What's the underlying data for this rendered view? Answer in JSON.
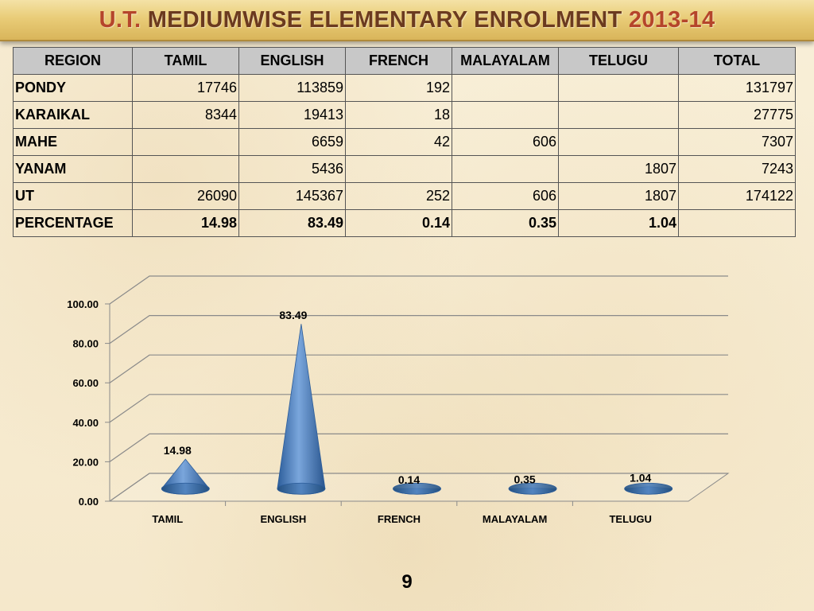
{
  "title": {
    "part1": "U.T.",
    "part2": "MEDIUMWISE ELEMENTARY ENROLMENT",
    "part3": "2013-14"
  },
  "table": {
    "headers": [
      "REGION",
      "TAMIL",
      "ENGLISH",
      "FRENCH",
      "MALAYALAM",
      "TELUGU",
      "TOTAL"
    ],
    "rows": [
      [
        "PONDY",
        "17746",
        "113859",
        "192",
        "",
        "",
        "131797"
      ],
      [
        "KARAIKAL",
        "8344",
        "19413",
        "18",
        "",
        "",
        "27775"
      ],
      [
        "MAHE",
        "",
        "6659",
        "42",
        "606",
        "",
        "7307"
      ],
      [
        "YANAM",
        "",
        "5436",
        "",
        "",
        "1807",
        "7243"
      ],
      [
        "UT",
        "26090",
        "145367",
        "252",
        "606",
        "1807",
        "174122"
      ],
      [
        "PERCENTAGE",
        "14.98",
        "83.49",
        "0.14",
        "0.35",
        "1.04",
        ""
      ]
    ]
  },
  "chart_data": {
    "type": "bar",
    "categories": [
      "TAMIL",
      "ENGLISH",
      "FRENCH",
      "MALAYALAM",
      "TELUGU"
    ],
    "values": [
      14.98,
      83.49,
      0.14,
      0.35,
      1.04
    ],
    "data_labels": [
      "14.98",
      "83.49",
      "0.14",
      "0.35",
      "1.04"
    ],
    "y_ticks": [
      "0.00",
      "20.00",
      "40.00",
      "60.00",
      "80.00",
      "100.00"
    ],
    "ylim": [
      0,
      100
    ],
    "grid": true,
    "style": "3d-cone",
    "bar_color": "#4f81bd"
  },
  "page_number": "9"
}
